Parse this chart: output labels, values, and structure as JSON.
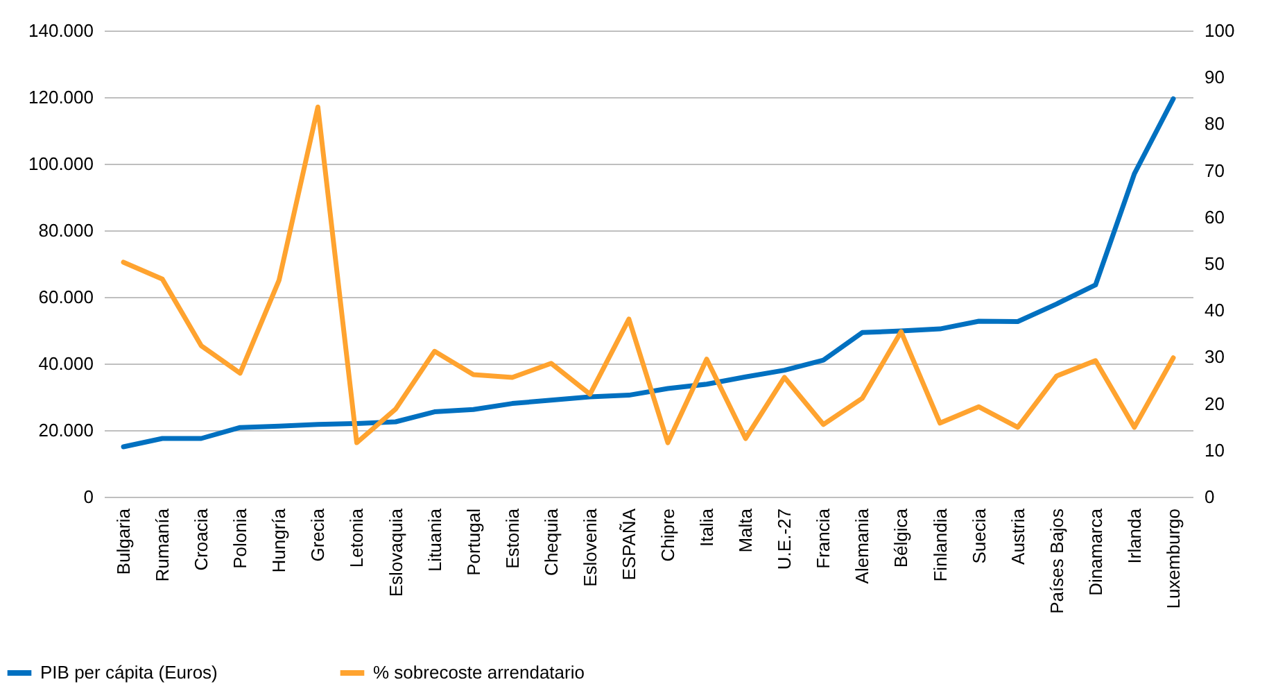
{
  "chart_data": {
    "type": "line",
    "categories": [
      "Bulgaria",
      "Rumanía",
      "Croacia",
      "Polonia",
      "Hungría",
      "Grecia",
      "Letonia",
      "Eslovaquia",
      "Lituania",
      "Portugal",
      "Estonia",
      "Chequia",
      "Eslovenia",
      "ESPAÑA",
      "Chipre",
      "Italia",
      "Malta",
      "U.E.-27",
      "Francia",
      "Alemania",
      "Bélgica",
      "Finlandia",
      "Suecia",
      "Austria",
      "Países Bajos",
      "Dinamarca",
      "Irlanda",
      "Luxemburgo"
    ],
    "series": [
      {
        "name": "PIB per cápita (Euros)",
        "color": "#0070c0",
        "values": [
          15000,
          17500,
          17500,
          20800,
          21200,
          21700,
          22000,
          22500,
          25500,
          26200,
          28000,
          29000,
          30000,
          30500,
          32500,
          33800,
          36000,
          38000,
          41000,
          49300,
          49800,
          50400,
          52700,
          52600,
          57900,
          63600,
          97000,
          119500
        ]
      },
      {
        "name": "% sobrecoste arrendatario",
        "color": "#ffa32f",
        "axis": "y2",
        "values": [
          50.3,
          46.7,
          32.4,
          26.5,
          46.4,
          83.6,
          11.6,
          18.8,
          31.2,
          26.2,
          25.6,
          28.6,
          22,
          38.1,
          11.6,
          29.5,
          12.5,
          25.6,
          15.5,
          21.1,
          35.4,
          15.8,
          19.3,
          14.9,
          25.9,
          29.2,
          14.9,
          29.8
        ]
      }
    ],
    "ylim": [
      0,
      140000
    ],
    "yticks": [
      {
        "value": 0,
        "label": "0"
      },
      {
        "value": 20000,
        "label": "20.000"
      },
      {
        "value": 40000,
        "label": "40.000"
      },
      {
        "value": 60000,
        "label": "60.000"
      },
      {
        "value": 80000,
        "label": "80.000"
      },
      {
        "value": 100000,
        "label": "100.000"
      },
      {
        "value": 120000,
        "label": "120.000"
      },
      {
        "value": 140000,
        "label": "140.000"
      }
    ],
    "y2lim": [
      0,
      100
    ],
    "y2ticks": [
      0,
      10,
      20,
      30,
      40,
      50,
      60,
      70,
      80,
      90,
      100
    ],
    "grid": "y",
    "legend": "bottom left",
    "marker": "none",
    "line_style": "solid"
  }
}
